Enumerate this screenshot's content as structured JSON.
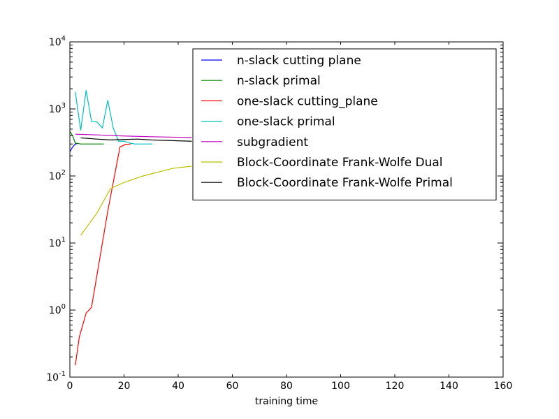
{
  "chart_data": {
    "type": "line",
    "xlabel": "training time",
    "ylabel": "",
    "xlim": [
      0,
      160
    ],
    "ylim": [
      0.1,
      10000
    ],
    "yscale": "log",
    "xticks": [
      0,
      20,
      40,
      60,
      80,
      100,
      120,
      140,
      160
    ],
    "yticks": [
      {
        "value": 0.1,
        "base": "10",
        "exp": "-1"
      },
      {
        "value": 1,
        "base": "10",
        "exp": "0"
      },
      {
        "value": 10,
        "base": "10",
        "exp": "1"
      },
      {
        "value": 100,
        "base": "10",
        "exp": "2"
      },
      {
        "value": 1000,
        "base": "10",
        "exp": "3"
      },
      {
        "value": 10000,
        "base": "10",
        "exp": "4"
      }
    ],
    "legend_position": "upper-right",
    "series": [
      {
        "name": "n-slack cutting plane",
        "color": "#0000ff",
        "x": [
          0,
          1,
          2,
          3
        ],
        "y": [
          230,
          270,
          300,
          305
        ]
      },
      {
        "name": "n-slack primal",
        "color": "#008000",
        "x": [
          0,
          1,
          2,
          4,
          6,
          8,
          10,
          12.5
        ],
        "y": [
          460,
          400,
          310,
          300,
          300,
          300,
          300,
          300
        ]
      },
      {
        "name": "one-slack cutting_plane",
        "color": "#ff0000",
        "x": [
          2,
          3.5,
          6,
          8,
          14,
          18.5,
          20.5,
          22.5
        ],
        "y": [
          0.15,
          0.4,
          0.9,
          1.1,
          30,
          270,
          295,
          300
        ]
      },
      {
        "name": "one-slack primal",
        "color": "#00bfbf",
        "x": [
          2,
          4,
          6,
          8,
          10,
          12,
          14,
          16,
          18,
          20,
          22,
          24,
          26,
          28,
          30.5
        ],
        "y": [
          1800,
          480,
          1900,
          650,
          640,
          520,
          1350,
          520,
          330,
          330,
          310,
          300,
          300,
          300,
          300
        ]
      },
      {
        "name": "subgradient",
        "color": "#bf00bf",
        "x": [
          2,
          10,
          20,
          30,
          40,
          45
        ],
        "y": [
          420,
          410,
          395,
          385,
          378,
          375
        ]
      },
      {
        "name": "Block-Coordinate Frank-Wolfe Dual",
        "color": "#bfbf00",
        "x": [
          4,
          10,
          15,
          20,
          27,
          38,
          45
        ],
        "y": [
          13,
          28,
          65,
          80,
          100,
          130,
          140
        ]
      },
      {
        "name": "Block-Coordinate Frank-Wolfe Primal",
        "color": "#000000",
        "x": [
          4,
          10,
          15,
          20,
          25,
          30,
          40,
          45
        ],
        "y": [
          370,
          355,
          345,
          350,
          355,
          345,
          335,
          330
        ]
      }
    ]
  }
}
